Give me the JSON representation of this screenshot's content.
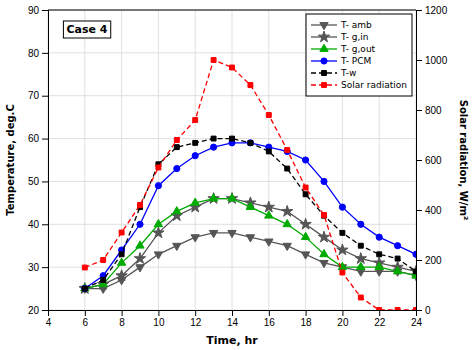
{
  "chart_data": {
    "type": "line",
    "title": "Case 4",
    "xlabel": "Time, hr",
    "ylabel": "Temperature, deg.C",
    "y2label": "Solar radiation, W/m²",
    "x": [
      6,
      7,
      8,
      9,
      10,
      11,
      12,
      13,
      14,
      15,
      16,
      17,
      18,
      19,
      20,
      21,
      22,
      23,
      24
    ],
    "series": [
      {
        "name": "T- amb",
        "color": "#555555",
        "marker": "triangle-down",
        "line_style": "solid",
        "values": [
          25,
          25,
          27,
          30,
          33,
          35,
          37,
          38,
          38,
          37,
          36,
          35,
          33,
          31,
          30,
          29,
          29,
          29,
          28
        ]
      },
      {
        "name": "T- g,in",
        "color": "#555555",
        "marker": "star",
        "line_style": "solid",
        "values": [
          25,
          26,
          28,
          32,
          38,
          42,
          44,
          46,
          46,
          45,
          44,
          43,
          40,
          37,
          34,
          32,
          31,
          30,
          29
        ]
      },
      {
        "name": "T- g,out",
        "color": "#00aa00",
        "marker": "triangle-up",
        "line_style": "solid",
        "values": [
          25,
          26,
          31,
          35,
          40,
          43,
          45,
          46,
          46,
          44,
          42,
          40,
          37,
          33,
          30,
          30,
          30,
          29,
          28
        ]
      },
      {
        "name": "T- PCM",
        "color": "#0000ff",
        "marker": "circle",
        "line_style": "solid",
        "values": [
          25,
          28,
          34,
          40,
          49,
          53,
          56,
          58,
          59,
          59,
          58,
          57,
          55,
          50,
          44,
          40,
          37,
          35,
          33
        ]
      },
      {
        "name": "T-w",
        "color": "#000000",
        "marker": "square",
        "line_style": "dashed",
        "values": [
          25,
          27,
          33,
          44,
          54,
          58,
          59,
          60,
          60,
          59,
          57,
          53,
          47,
          42,
          38,
          35,
          33,
          32,
          29
        ]
      },
      {
        "name": "Solar radiation",
        "color": "#ff0000",
        "marker": "square",
        "line_style": "dashed",
        "axis": "y2",
        "values": [
          170,
          200,
          310,
          420,
          570,
          680,
          760,
          1000,
          970,
          900,
          780,
          640,
          490,
          380,
          150,
          50,
          0,
          0,
          0
        ]
      }
    ],
    "xlim": [
      4,
      24
    ],
    "xticks": [
      4,
      6,
      8,
      10,
      12,
      14,
      16,
      18,
      20,
      22,
      24
    ],
    "ylim": [
      20,
      90
    ],
    "yticks": [
      20,
      30,
      40,
      50,
      60,
      70,
      80,
      90
    ],
    "y2lim": [
      0,
      1200
    ],
    "y2ticks": [
      0,
      200,
      400,
      600,
      800,
      1000,
      1200
    ],
    "grid": true,
    "legend": "upper right"
  }
}
